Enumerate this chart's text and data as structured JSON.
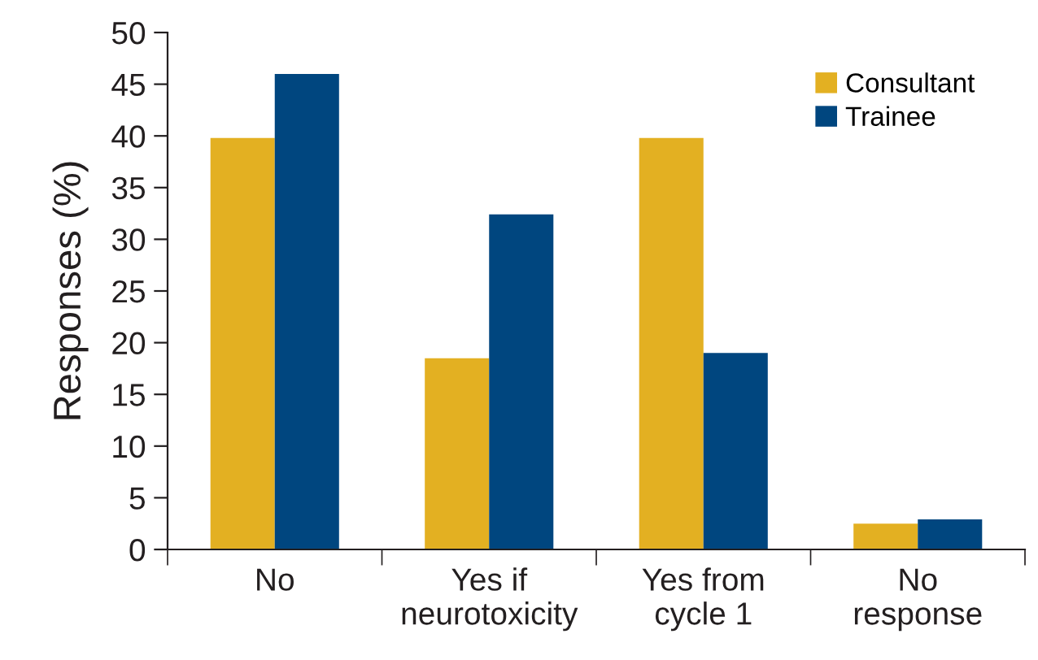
{
  "chart_data": {
    "type": "bar",
    "ylabel": "Responses (%)",
    "categories": [
      "No",
      "Yes if\nneurotoxicity",
      "Yes from\ncycle 1",
      "No\nresponse"
    ],
    "series": [
      {
        "name": "Consultant",
        "color": "#e3b022",
        "values": [
          39.8,
          18.5,
          39.8,
          2.5
        ]
      },
      {
        "name": "Trainee",
        "color": "#00467f",
        "values": [
          46.0,
          32.4,
          19.0,
          2.9
        ]
      }
    ],
    "ylim": [
      0,
      50
    ],
    "yticks": [
      0,
      5,
      10,
      15,
      20,
      25,
      30,
      35,
      40,
      45,
      50
    ],
    "grid": false,
    "legend": "top right"
  }
}
